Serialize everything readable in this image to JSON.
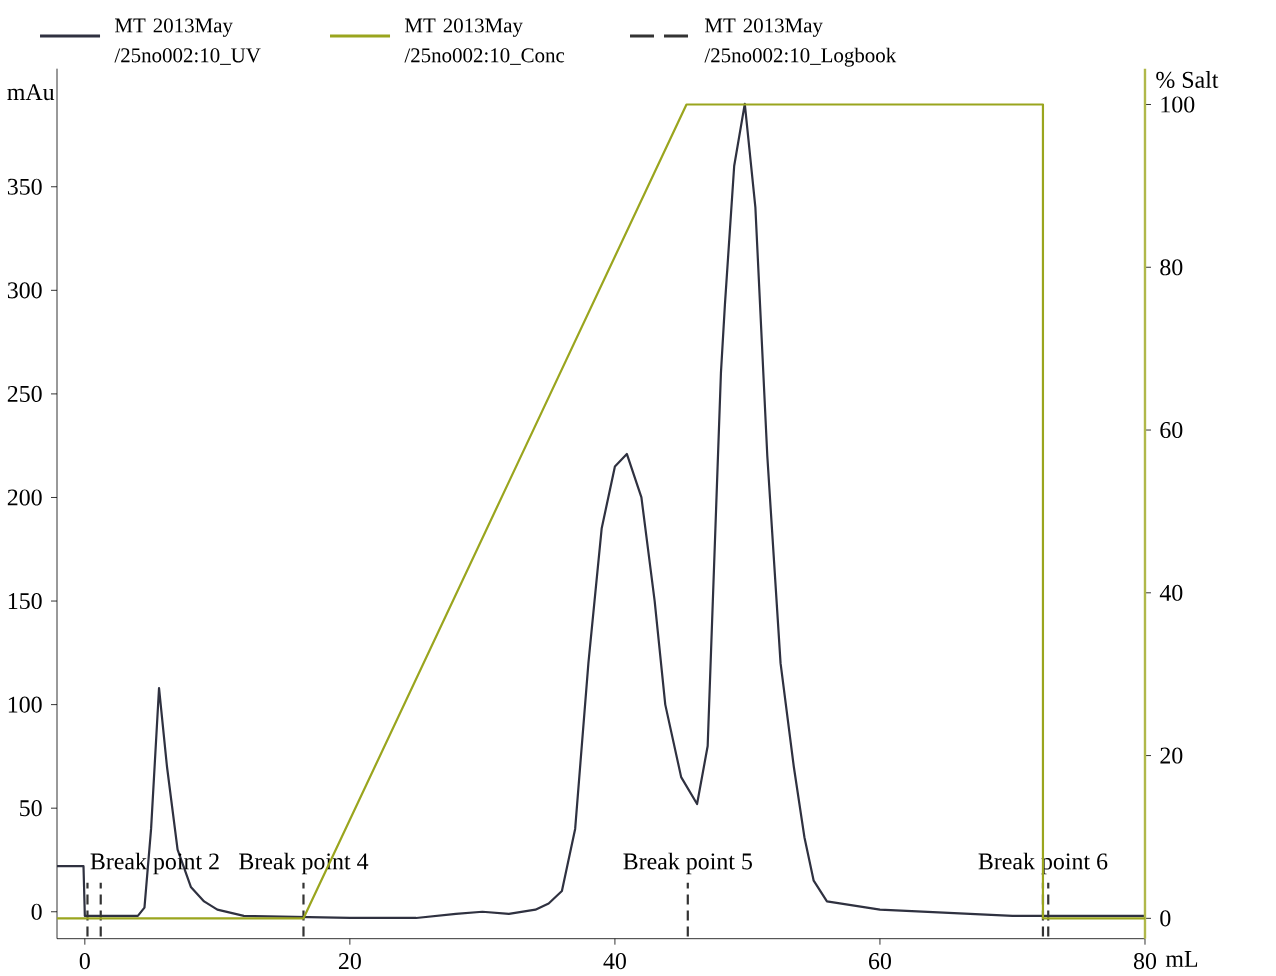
{
  "chart_data": {
    "type": "line",
    "xlabel": "mL",
    "ylabel": "mAu",
    "y2label": "% Salt",
    "xlim": [
      -2.1,
      80
    ],
    "xticks": [
      0,
      20,
      40,
      60,
      80
    ],
    "ylim": [
      -13,
      407
    ],
    "yticks": [
      0,
      50,
      100,
      150,
      200,
      250,
      300,
      350
    ],
    "y2lim": [
      -2.5,
      104.4
    ],
    "y2ticks": [
      0,
      20,
      40,
      60,
      80,
      100
    ],
    "legend": "top",
    "grid": false,
    "series": [
      {
        "name": "MT 2013May /25no002:10_UV",
        "color": "#2f3140",
        "line_style": "solid",
        "x": [
          -2.1,
          -0.1,
          0,
          4,
          4.5,
          5,
          5.6,
          6.2,
          7,
          8,
          9,
          10,
          12,
          20,
          25,
          28,
          30,
          32,
          34,
          35,
          36,
          37,
          38,
          39,
          40,
          40.9,
          42,
          43,
          43.8,
          45,
          46.2,
          47,
          48,
          48.3,
          49,
          49.8,
          50.6,
          51.5,
          52.5,
          53.5,
          54.3,
          55,
          56,
          60,
          70,
          80
        ],
        "values": [
          22,
          22,
          -2,
          -2,
          2,
          40,
          108,
          70,
          30,
          12,
          5,
          1,
          -2,
          -3,
          -3,
          -1,
          0,
          -1,
          1,
          4,
          10,
          40,
          120,
          185,
          215,
          221,
          200,
          150,
          100,
          65,
          52,
          80,
          260,
          293,
          360,
          390,
          340,
          220,
          120,
          70,
          36,
          15,
          5,
          1,
          -2,
          -2
        ]
      },
      {
        "name": "MT 2013May /25no002:10_Conc",
        "color": "#9aa51e",
        "line_style": "solid",
        "axis": "y2",
        "x": [
          -2.1,
          16.5,
          45.4,
          72.3,
          72.3,
          80
        ],
        "values": [
          0,
          0,
          100,
          100,
          0,
          0
        ]
      },
      {
        "name": "MT 2013May /25no002:10_Logbook",
        "color": "#333333",
        "line_style": "dashed",
        "x": [
          0.2,
          0.2,
          null,
          1.2,
          1.2,
          null,
          16.5,
          16.5,
          null,
          45.5,
          45.5,
          null,
          72.3,
          72.3,
          null,
          72.7,
          72.7
        ],
        "values": [
          -12,
          14,
          null,
          -12,
          14,
          null,
          -12,
          14,
          null,
          -12,
          14,
          null,
          -12,
          14,
          null,
          -12,
          14
        ]
      }
    ],
    "annotations": [
      {
        "text": "Break point 2",
        "x": 0.2,
        "y": 14
      },
      {
        "text": "Break point 4",
        "x": 16.5,
        "y": 14
      },
      {
        "text": "Break point 5",
        "x": 45.5,
        "y": 14
      },
      {
        "text": "Break point 6",
        "x": 72.3,
        "y": 14
      }
    ]
  }
}
